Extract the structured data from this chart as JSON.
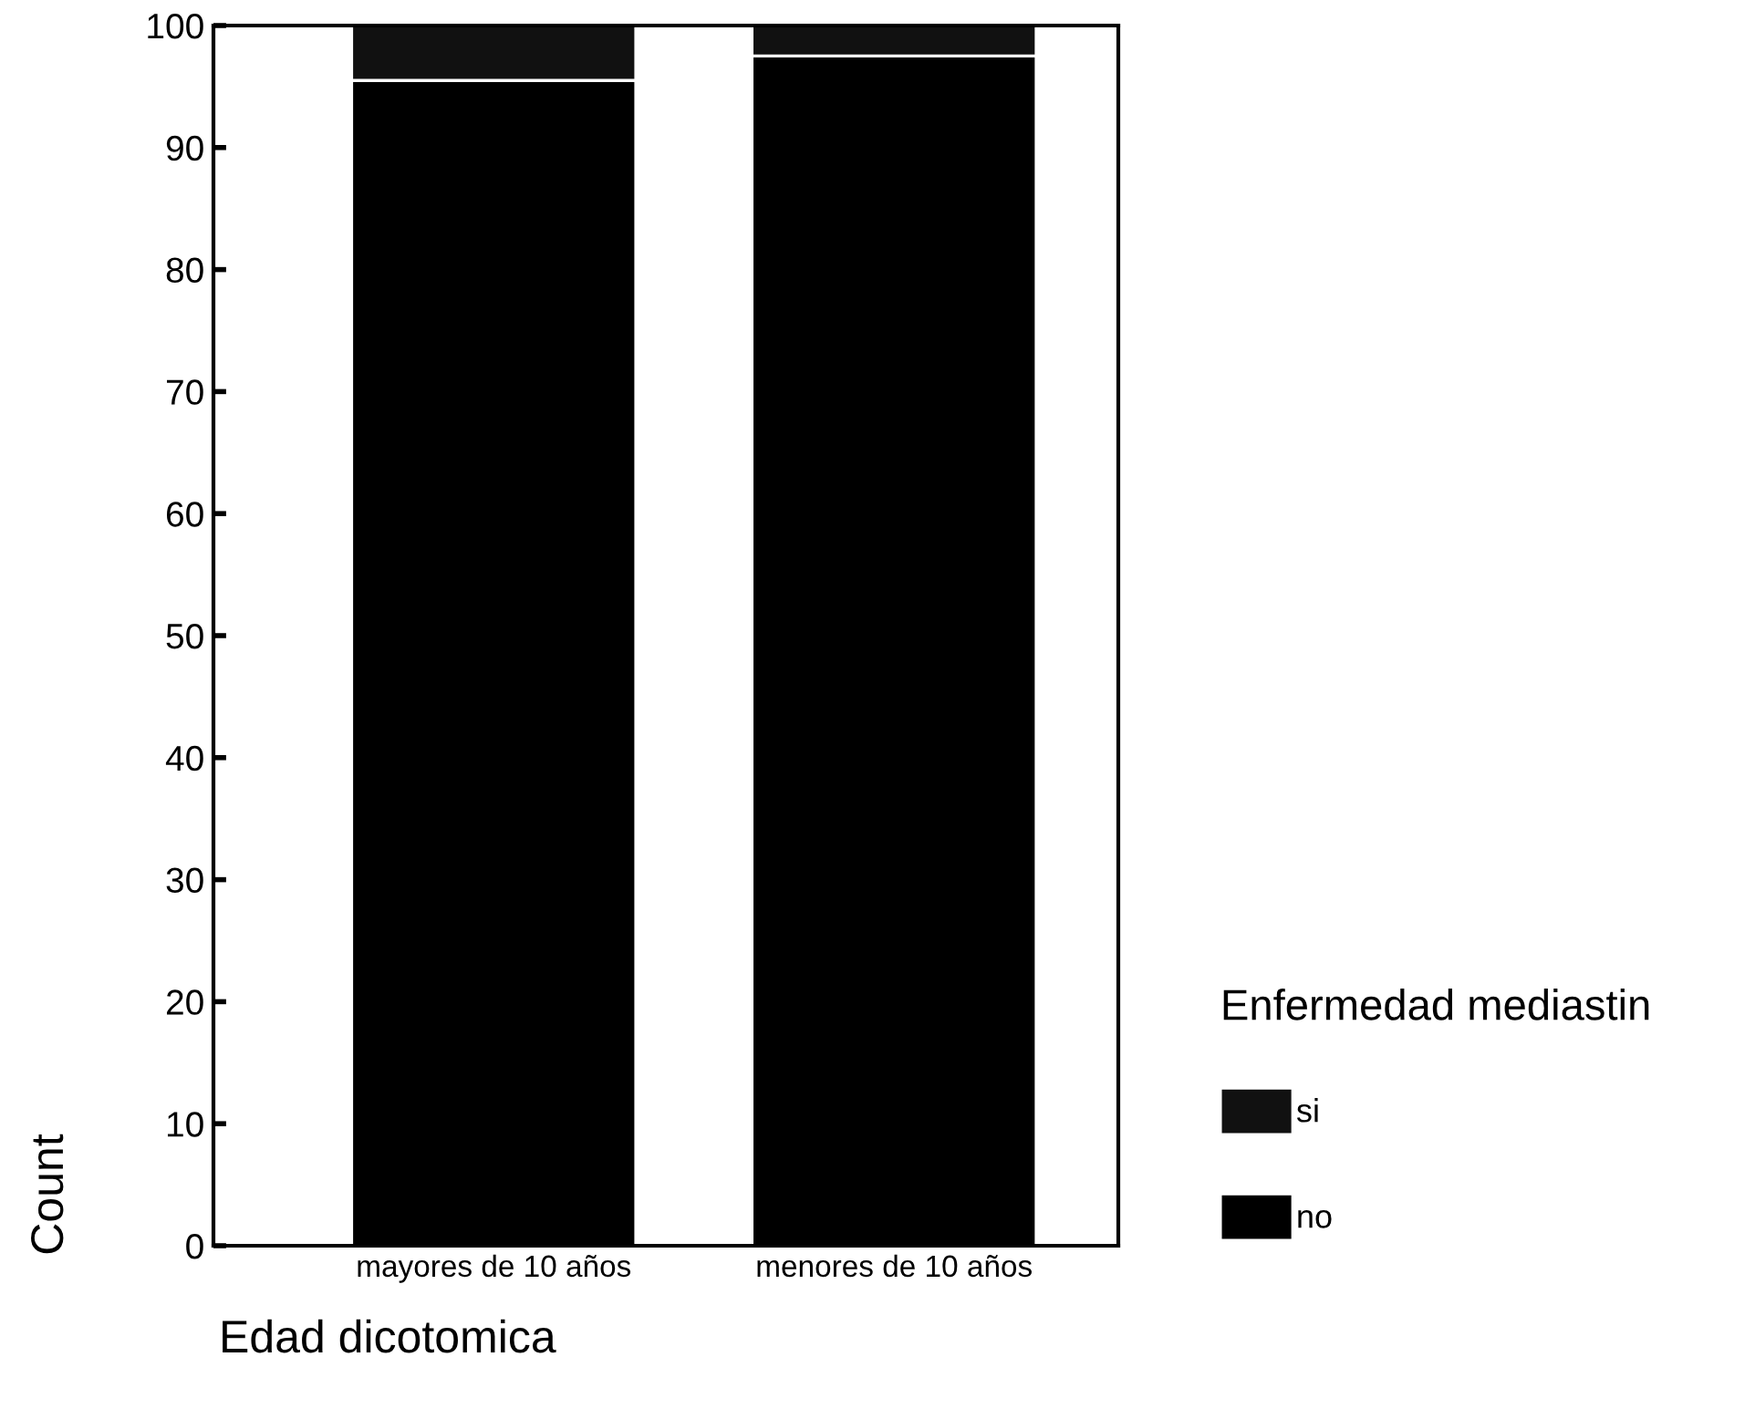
{
  "chart_data": {
    "type": "bar",
    "stacked": true,
    "xlabel": "Edad dicotomica",
    "ylabel": "Count",
    "legend_title": "Enfermedad mediastin",
    "categories": [
      "mayores de 10 años",
      "menores de 10 años"
    ],
    "series": [
      {
        "name": "no",
        "color": "#000000",
        "values": [
          95.5,
          97.5
        ]
      },
      {
        "name": "si",
        "color": "#111111",
        "values": [
          4.5,
          2.5
        ]
      }
    ],
    "ylim": [
      0,
      100
    ],
    "yticks": [
      0,
      10,
      20,
      30,
      40,
      50,
      60,
      70,
      80,
      90,
      100
    ],
    "grid": false,
    "legend": "right"
  }
}
